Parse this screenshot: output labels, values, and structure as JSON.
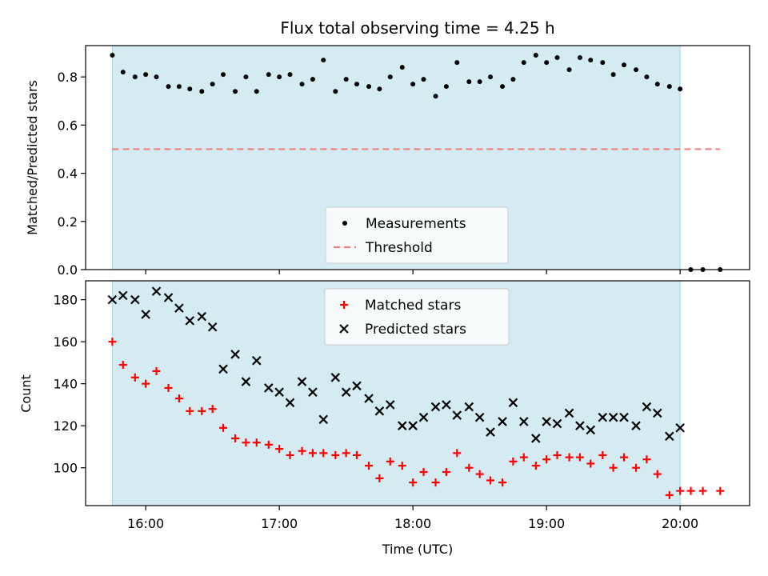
{
  "chart_data": {
    "type": "scatter",
    "title": "Flux total observing time = 4.25 h",
    "xlabel": "Time (UTC)",
    "x_ticks": [
      "16:00",
      "17:00",
      "18:00",
      "19:00",
      "20:00"
    ],
    "x_range_hours": [
      15.55,
      20.52
    ],
    "observing_window_hours": [
      15.75,
      20.0
    ],
    "shade_color": "#d4ebf1",
    "top": {
      "ylabel": "Matched/Predicted stars",
      "ylim": [
        0.0,
        0.93
      ],
      "y_ticks": [
        "0.0",
        "0.2",
        "0.4",
        "0.6",
        "0.8"
      ],
      "y_tick_values": [
        0.0,
        0.2,
        0.4,
        0.6,
        0.8
      ],
      "threshold": {
        "name": "Threshold",
        "value": 0.5,
        "x_range": [
          15.75,
          20.3
        ],
        "color": "#f08080"
      },
      "series": [
        {
          "name": "Measurements",
          "color": "#000000",
          "marker": "dot",
          "points": [
            [
              15.75,
              0.89
            ],
            [
              15.83,
              0.82
            ],
            [
              15.92,
              0.8
            ],
            [
              16.0,
              0.81
            ],
            [
              16.08,
              0.8
            ],
            [
              16.17,
              0.76
            ],
            [
              16.25,
              0.76
            ],
            [
              16.33,
              0.75
            ],
            [
              16.42,
              0.74
            ],
            [
              16.5,
              0.77
            ],
            [
              16.58,
              0.81
            ],
            [
              16.67,
              0.74
            ],
            [
              16.75,
              0.8
            ],
            [
              16.83,
              0.74
            ],
            [
              16.92,
              0.81
            ],
            [
              17.0,
              0.8
            ],
            [
              17.08,
              0.81
            ],
            [
              17.17,
              0.77
            ],
            [
              17.25,
              0.79
            ],
            [
              17.33,
              0.87
            ],
            [
              17.42,
              0.74
            ],
            [
              17.5,
              0.79
            ],
            [
              17.58,
              0.77
            ],
            [
              17.67,
              0.76
            ],
            [
              17.75,
              0.75
            ],
            [
              17.83,
              0.8
            ],
            [
              17.92,
              0.84
            ],
            [
              18.0,
              0.77
            ],
            [
              18.08,
              0.79
            ],
            [
              18.17,
              0.72
            ],
            [
              18.25,
              0.76
            ],
            [
              18.33,
              0.86
            ],
            [
              18.42,
              0.78
            ],
            [
              18.5,
              0.78
            ],
            [
              18.58,
              0.8
            ],
            [
              18.67,
              0.76
            ],
            [
              18.75,
              0.79
            ],
            [
              18.83,
              0.86
            ],
            [
              18.92,
              0.89
            ],
            [
              19.0,
              0.86
            ],
            [
              19.08,
              0.88
            ],
            [
              19.17,
              0.83
            ],
            [
              19.25,
              0.88
            ],
            [
              19.33,
              0.87
            ],
            [
              19.42,
              0.86
            ],
            [
              19.5,
              0.81
            ],
            [
              19.58,
              0.85
            ],
            [
              19.67,
              0.83
            ],
            [
              19.75,
              0.8
            ],
            [
              19.83,
              0.77
            ],
            [
              19.92,
              0.76
            ],
            [
              20.0,
              0.75
            ],
            [
              20.08,
              0.0
            ],
            [
              20.17,
              0.0
            ],
            [
              20.3,
              0.0
            ]
          ]
        }
      ],
      "legend_position": "lower-center"
    },
    "bottom": {
      "ylabel": "Count",
      "ylim": [
        82,
        189
      ],
      "y_ticks": [
        "100",
        "120",
        "140",
        "160",
        "180"
      ],
      "y_tick_values": [
        100,
        120,
        140,
        160,
        180
      ],
      "series": [
        {
          "name": "Matched stars",
          "color": "#ff0000",
          "marker": "plus",
          "points": [
            [
              15.75,
              160
            ],
            [
              15.83,
              149
            ],
            [
              15.92,
              143
            ],
            [
              16.0,
              140
            ],
            [
              16.08,
              146
            ],
            [
              16.17,
              138
            ],
            [
              16.25,
              133
            ],
            [
              16.33,
              127
            ],
            [
              16.42,
              127
            ],
            [
              16.5,
              128
            ],
            [
              16.58,
              119
            ],
            [
              16.67,
              114
            ],
            [
              16.75,
              112
            ],
            [
              16.83,
              112
            ],
            [
              16.92,
              111
            ],
            [
              17.0,
              109
            ],
            [
              17.08,
              106
            ],
            [
              17.17,
              108
            ],
            [
              17.25,
              107
            ],
            [
              17.33,
              107
            ],
            [
              17.42,
              106
            ],
            [
              17.5,
              107
            ],
            [
              17.58,
              106
            ],
            [
              17.67,
              101
            ],
            [
              17.75,
              95
            ],
            [
              17.83,
              103
            ],
            [
              17.92,
              101
            ],
            [
              18.0,
              93
            ],
            [
              18.08,
              98
            ],
            [
              18.17,
              93
            ],
            [
              18.25,
              98
            ],
            [
              18.33,
              107
            ],
            [
              18.42,
              100
            ],
            [
              18.5,
              97
            ],
            [
              18.58,
              94
            ],
            [
              18.67,
              93
            ],
            [
              18.75,
              103
            ],
            [
              18.83,
              105
            ],
            [
              18.92,
              101
            ],
            [
              19.0,
              104
            ],
            [
              19.08,
              106
            ],
            [
              19.17,
              105
            ],
            [
              19.25,
              105
            ],
            [
              19.33,
              102
            ],
            [
              19.42,
              106
            ],
            [
              19.5,
              100
            ],
            [
              19.58,
              105
            ],
            [
              19.67,
              100
            ],
            [
              19.75,
              104
            ],
            [
              19.83,
              97
            ],
            [
              19.92,
              87
            ],
            [
              20.0,
              89
            ],
            [
              20.08,
              89
            ],
            [
              20.17,
              89
            ],
            [
              20.3,
              89
            ]
          ]
        },
        {
          "name": "Predicted stars",
          "color": "#000000",
          "marker": "x",
          "points": [
            [
              15.75,
              180
            ],
            [
              15.83,
              182
            ],
            [
              15.92,
              180
            ],
            [
              16.0,
              173
            ],
            [
              16.08,
              184
            ],
            [
              16.17,
              181
            ],
            [
              16.25,
              176
            ],
            [
              16.33,
              170
            ],
            [
              16.42,
              172
            ],
            [
              16.5,
              167
            ],
            [
              16.58,
              147
            ],
            [
              16.67,
              154
            ],
            [
              16.75,
              141
            ],
            [
              16.83,
              151
            ],
            [
              16.92,
              138
            ],
            [
              17.0,
              136
            ],
            [
              17.08,
              131
            ],
            [
              17.17,
              141
            ],
            [
              17.25,
              136
            ],
            [
              17.33,
              123
            ],
            [
              17.42,
              143
            ],
            [
              17.5,
              136
            ],
            [
              17.58,
              139
            ],
            [
              17.67,
              133
            ],
            [
              17.75,
              127
            ],
            [
              17.83,
              130
            ],
            [
              17.92,
              120
            ],
            [
              18.0,
              120
            ],
            [
              18.08,
              124
            ],
            [
              18.17,
              129
            ],
            [
              18.25,
              130
            ],
            [
              18.33,
              125
            ],
            [
              18.42,
              129
            ],
            [
              18.5,
              124
            ],
            [
              18.58,
              117
            ],
            [
              18.67,
              122
            ],
            [
              18.75,
              131
            ],
            [
              18.83,
              122
            ],
            [
              18.92,
              114
            ],
            [
              19.0,
              122
            ],
            [
              19.08,
              121
            ],
            [
              19.17,
              126
            ],
            [
              19.25,
              120
            ],
            [
              19.33,
              118
            ],
            [
              19.42,
              124
            ],
            [
              19.5,
              124
            ],
            [
              19.58,
              124
            ],
            [
              19.67,
              120
            ],
            [
              19.75,
              129
            ],
            [
              19.83,
              126
            ],
            [
              19.92,
              115
            ],
            [
              20.0,
              119
            ]
          ]
        }
      ],
      "legend_position": "upper-center"
    }
  }
}
